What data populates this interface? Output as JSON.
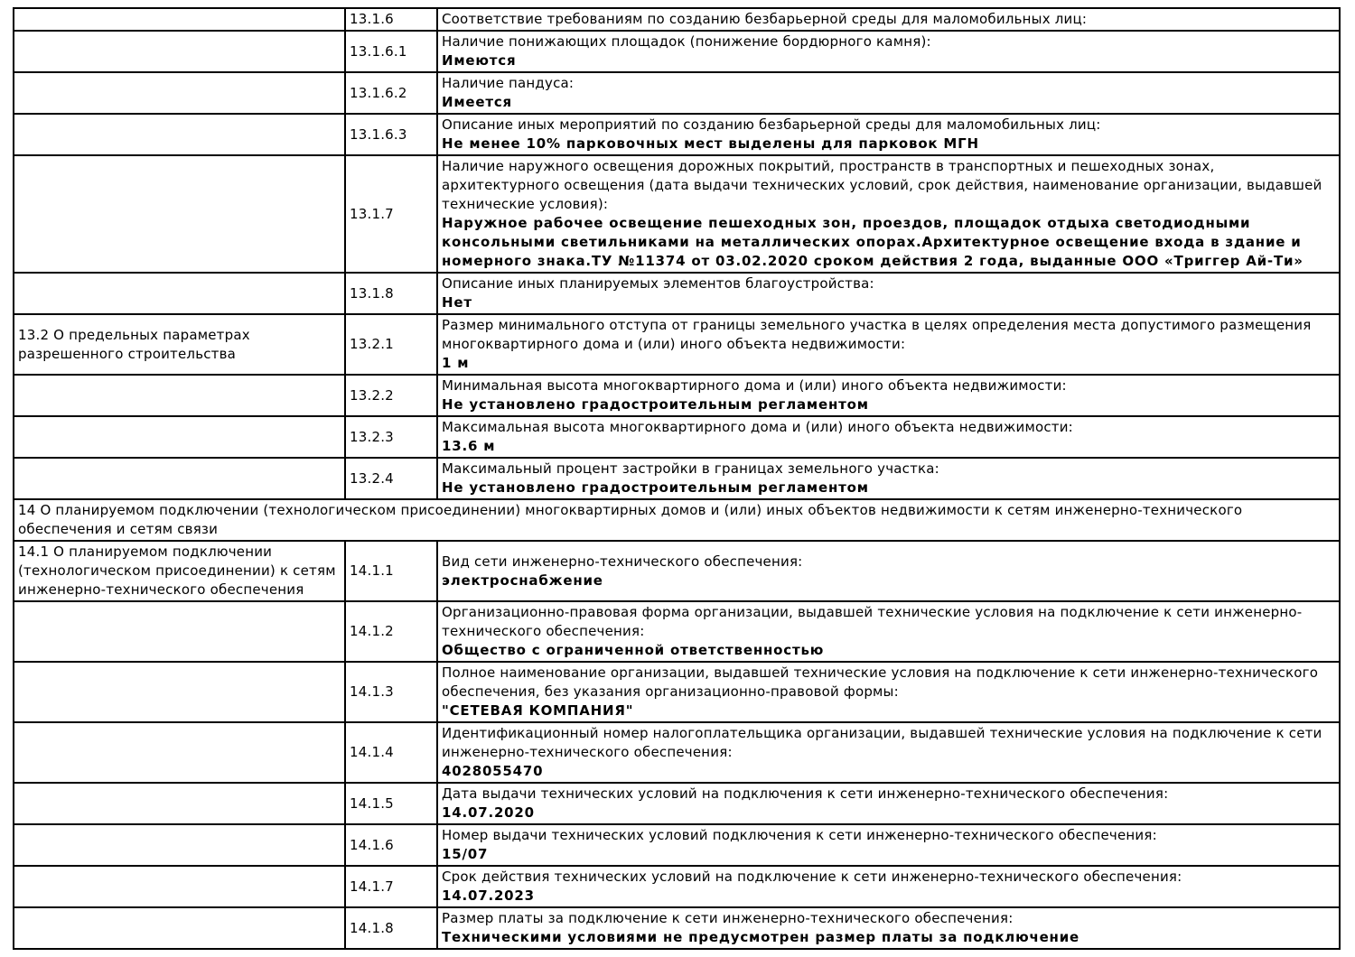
{
  "document": {
    "background_color": "#ffffff",
    "border_color": "#000000",
    "text_color": "#000000"
  },
  "table": {
    "rows": [
      {
        "type": "item",
        "section": "",
        "num": "13.1.6",
        "label": "Соответствие требованиям по созданию безбарьерной среды для маломобильных лиц:",
        "value": ""
      },
      {
        "type": "item",
        "section": "",
        "num": "13.1.6.1",
        "label": "Наличие понижающих площадок (понижение бордюрного камня):",
        "value": "Имеются"
      },
      {
        "type": "item",
        "section": "",
        "num": "13.1.6.2",
        "label": "Наличие пандуса:",
        "value": "Имеется"
      },
      {
        "type": "item",
        "section": "",
        "num": "13.1.6.3",
        "label": "Описание иных мероприятий по созданию безбарьерной среды для маломобильных лиц:",
        "value": "Не менее 10% парковочных мест выделены для парковок МГН"
      },
      {
        "type": "item",
        "section": "",
        "num": "13.1.7",
        "label": "Наличие наружного освещения дорожных покрытий, пространств в транспортных и пешеходных зонах, архитектурного освещения (дата выдачи технических условий, срок действия, наименование организации, выдавшей технические условия):",
        "value": "Наружное рабочее освещение пешеходных зон, проездов, площадок отдыха светодиодными консольными светильниками на металлических опорах.Архитектурное освещение входа в здание и номерного знака.ТУ №11374 от 03.02.2020 сроком действия 2 года, выданные ООО «Триггер Ай-Ти»"
      },
      {
        "type": "item",
        "section": "",
        "num": "13.1.8",
        "label": "Описание иных планируемых элементов благоустройства:",
        "value": "Нет"
      },
      {
        "type": "item",
        "section": "13.2 О предельных параметрах разрешенного строительства",
        "num": "13.2.1",
        "label": "Размер минимального отступа от границы земельного участка в целях определения места допустимого размещения многоквартирного дома и (или) иного объекта недвижимости:",
        "value": "1 м"
      },
      {
        "type": "item",
        "section": "",
        "num": "13.2.2",
        "label": "Минимальная высота многоквартирного дома и (или) иного объекта недвижимости:",
        "value": "Не установлено градостроительным регламентом"
      },
      {
        "type": "item",
        "section": "",
        "num": "13.2.3",
        "label": "Максимальная высота многоквартирного дома и (или) иного объекта недвижимости:",
        "value": "13.6 м"
      },
      {
        "type": "item",
        "section": "",
        "num": "13.2.4",
        "label": "Максимальный процент застройки в границах земельного участка:",
        "value": "Не установлено градостроительным регламентом"
      },
      {
        "type": "section",
        "text": "14 О планируемом подключении (технологическом присоединении) многоквартирных домов и (или) иных объектов недвижимости к сетям инженерно-технического обеспечения и сетям связи"
      },
      {
        "type": "item",
        "section": "14.1 О планируемом подключении (технологическом присоединении) к сетям инженерно-технического обеспечения",
        "num": "14.1.1",
        "label": "Вид сети инженерно-технического обеспечения:",
        "value": "электроснабжение"
      },
      {
        "type": "item",
        "section": "",
        "num": "14.1.2",
        "label": "Организационно-правовая форма организации, выдавшей технические условия на подключение к сети инженерно-технического обеспечения:",
        "value": "Общество с ограниченной ответственностью"
      },
      {
        "type": "item",
        "section": "",
        "num": "14.1.3",
        "label": "Полное наименование организации, выдавшей технические условия на подключение к сети инженерно-технического обеспечения, без указания организационно-правовой формы:",
        "value": "\"СЕТЕВАЯ КОМПАНИЯ\""
      },
      {
        "type": "item",
        "section": "",
        "num": "14.1.4",
        "label": "Идентификационный номер налогоплательщика организации, выдавшей технические условия на подключение к сети инженерно-технического обеспечения:",
        "value": "4028055470"
      },
      {
        "type": "item",
        "section": "",
        "num": "14.1.5",
        "label": "Дата выдачи технических условий на подключения к сети инженерно-технического обеспечения:",
        "value": "14.07.2020"
      },
      {
        "type": "item",
        "section": "",
        "num": "14.1.6",
        "label": "Номер выдачи технических условий подключения к сети инженерно-технического обеспечения:",
        "value": "15/07"
      },
      {
        "type": "item",
        "section": "",
        "num": "14.1.7",
        "label": "Срок действия технических условий на подключение к сети инженерно-технического обеспечения:",
        "value": "14.07.2023"
      },
      {
        "type": "item",
        "section": "",
        "num": "14.1.8",
        "label": "Размер платы за подключение к сети инженерно-технического обеспечения:",
        "value": "Техническими условиями не предусмотрен размер платы за подключение"
      }
    ]
  }
}
